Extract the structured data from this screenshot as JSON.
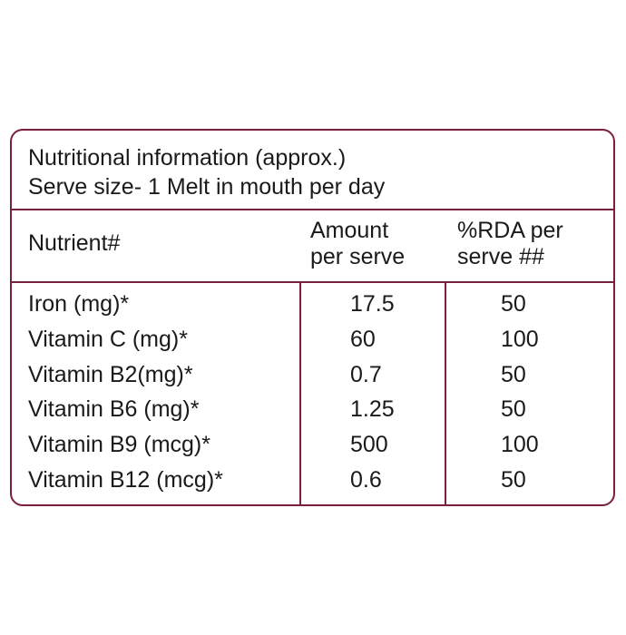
{
  "title": {
    "line1": "Nutritional information (approx.)",
    "line2": "Serve size- 1 Melt in mouth per day"
  },
  "headers": {
    "nutrient": "Nutrient#",
    "amount_line1": "Amount",
    "amount_line2": "per serve",
    "rda_line1": "%RDA per",
    "rda_line2": "serve ##"
  },
  "rows": [
    {
      "nutrient": "Iron (mg)*",
      "amount": "17.5",
      "rda": "50"
    },
    {
      "nutrient": "Vitamin C (mg)*",
      "amount": "60",
      "rda": "100"
    },
    {
      "nutrient": "Vitamin B2(mg)*",
      "amount": "0.7",
      "rda": "50"
    },
    {
      "nutrient": "Vitamin B6 (mg)*",
      "amount": "1.25",
      "rda": "50"
    },
    {
      "nutrient": "Vitamin B9 (mcg)*",
      "amount": "500",
      "rda": "100"
    },
    {
      "nutrient": "Vitamin B12 (mcg)*",
      "amount": "0.6",
      "rda": "50"
    }
  ],
  "colors": {
    "border": "#7a1f3d",
    "text": "#1a1a1a"
  }
}
